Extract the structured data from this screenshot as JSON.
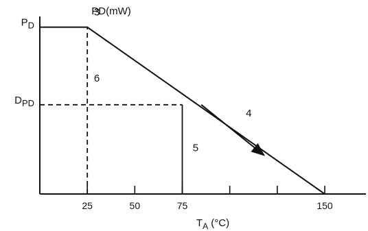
{
  "chart_data": {
    "type": "line",
    "ylabel": "PD(mW)",
    "xlabel_main": "T",
    "xlabel_sub": "A",
    "xlabel_unit": " (°C)",
    "x_ticks": [
      25,
      50,
      75,
      100,
      125,
      150
    ],
    "x_tick_labels": [
      {
        "value": 25,
        "label": "25"
      },
      {
        "value": 50,
        "label": "50"
      },
      {
        "value": 75,
        "label": "75"
      },
      {
        "value": 150,
        "label": "150"
      }
    ],
    "xlim": [
      0,
      165
    ],
    "ylim": [
      0,
      1.0
    ],
    "y_levels": [
      {
        "main": "P",
        "sub": "D",
        "value": 0.86
      },
      {
        "main": "D",
        "sub": "PD",
        "value": 0.46
      }
    ],
    "series": [
      {
        "x": [
          0,
          25,
          150
        ],
        "y": [
          0.86,
          0.86,
          0
        ]
      }
    ],
    "guides": [
      {
        "style": "dashed",
        "from": [
          25,
          0
        ],
        "to": [
          25,
          0.86
        ]
      },
      {
        "style": "dashed",
        "from": [
          0,
          0.46
        ],
        "to": [
          75,
          0.46
        ]
      },
      {
        "style": "solid",
        "from": [
          75,
          0
        ],
        "to": [
          75,
          0.46
        ]
      }
    ],
    "arrow": {
      "from": [
        85,
        0.46
      ],
      "to": [
        118,
        0.2
      ]
    },
    "annotations": [
      {
        "text": "3",
        "x": 30,
        "y": 0.92
      },
      {
        "text": "6",
        "x": 30,
        "y": 0.58
      },
      {
        "text": "4",
        "x": 110,
        "y": 0.4
      },
      {
        "text": "5",
        "x": 82,
        "y": 0.22
      }
    ],
    "grid": false,
    "colors": {
      "line": "#111111"
    }
  }
}
